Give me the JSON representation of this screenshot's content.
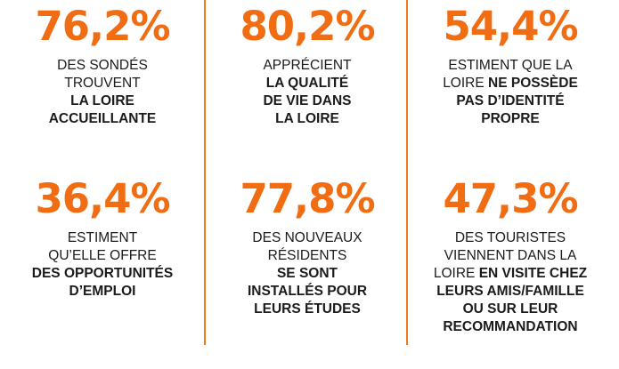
{
  "accent_color": "#f06d14",
  "stats": [
    {
      "value": "76,2%",
      "lines": [
        [
          {
            "t": "DES SONDÉS",
            "b": false
          }
        ],
        [
          {
            "t": "TROUVENT",
            "b": false
          }
        ],
        [
          {
            "t": "LA LOIRE",
            "b": true
          }
        ],
        [
          {
            "t": "ACCUEILLANTE",
            "b": true
          }
        ]
      ]
    },
    {
      "value": "80,2%",
      "lines": [
        [
          {
            "t": "APPRÉCIENT",
            "b": false
          }
        ],
        [
          {
            "t": "LA QUALITÉ",
            "b": true
          }
        ],
        [
          {
            "t": "DE VIE DANS",
            "b": true
          }
        ],
        [
          {
            "t": "LA LOIRE",
            "b": true
          }
        ]
      ]
    },
    {
      "value": "54,4%",
      "lines": [
        [
          {
            "t": "ESTIMENT QUE LA",
            "b": false
          }
        ],
        [
          {
            "t": "LOIRE ",
            "b": false
          },
          {
            "t": "NE POSSÈDE",
            "b": true
          }
        ],
        [
          {
            "t": "PAS D’IDENTITÉ",
            "b": true
          }
        ],
        [
          {
            "t": "PROPRE",
            "b": true
          }
        ]
      ]
    },
    {
      "value": "36,4%",
      "lines": [
        [
          {
            "t": "ESTIMENT",
            "b": false
          }
        ],
        [
          {
            "t": "QU’ELLE OFFRE",
            "b": false
          }
        ],
        [
          {
            "t": "DES OPPORTUNITÉS",
            "b": true
          }
        ],
        [
          {
            "t": "D’EMPLOI",
            "b": true
          }
        ]
      ]
    },
    {
      "value": "77,8%",
      "lines": [
        [
          {
            "t": "DES NOUVEAUX",
            "b": false
          }
        ],
        [
          {
            "t": "RÉSIDENTS",
            "b": false
          }
        ],
        [
          {
            "t": "SE SONT",
            "b": true
          }
        ],
        [
          {
            "t": "INSTALLÉS POUR",
            "b": true
          }
        ],
        [
          {
            "t": "LEURS ÉTUDES",
            "b": true
          }
        ]
      ]
    },
    {
      "value": "47,3%",
      "lines": [
        [
          {
            "t": "DES TOURISTES",
            "b": false
          }
        ],
        [
          {
            "t": "VIENNENT DANS LA",
            "b": false
          }
        ],
        [
          {
            "t": "LOIRE ",
            "b": false
          },
          {
            "t": "EN VISITE CHEZ",
            "b": true
          }
        ],
        [
          {
            "t": "LEURS AMIS/FAMILLE",
            "b": true
          }
        ],
        [
          {
            "t": "OU SUR LEUR",
            "b": true
          }
        ],
        [
          {
            "t": "RECOMMANDATION",
            "b": true
          }
        ]
      ]
    }
  ]
}
